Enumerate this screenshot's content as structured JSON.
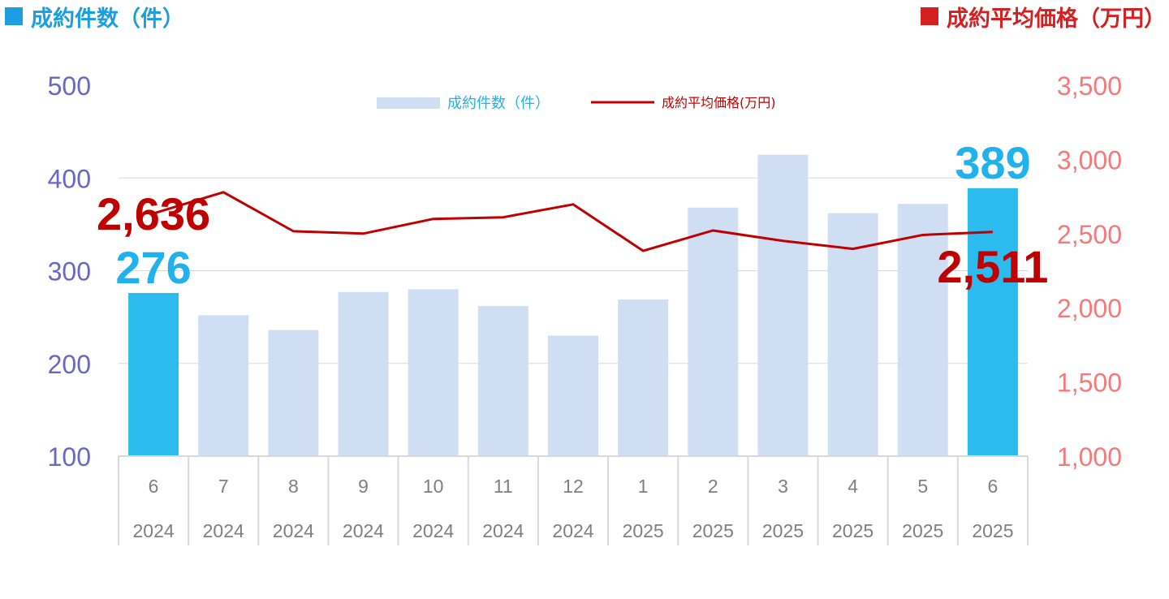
{
  "colors": {
    "count_accent": "#1b9ee0",
    "price_accent": "#d42020",
    "bar_light": "#cfdef3",
    "bar_highlight": "#2bbbee",
    "line": "#c00000",
    "left_axis_text": "#6a66c4",
    "right_axis_text": "#f47a7a",
    "count_label": "#1fb2ec",
    "price_label": "#c00000",
    "grid": "#d9d9d9",
    "cat_text": "#7f7f7f"
  },
  "header": {
    "left_title": "成約件数（件）",
    "right_title": "成約平均価格（万円）"
  },
  "chart_data": {
    "type": "bar",
    "categories": [
      {
        "month": "6",
        "year": "2024"
      },
      {
        "month": "7",
        "year": "2024"
      },
      {
        "month": "8",
        "year": "2024"
      },
      {
        "month": "9",
        "year": "2024"
      },
      {
        "month": "10",
        "year": "2024"
      },
      {
        "month": "11",
        "year": "2024"
      },
      {
        "month": "12",
        "year": "2024"
      },
      {
        "month": "1",
        "year": "2025"
      },
      {
        "month": "2",
        "year": "2025"
      },
      {
        "month": "3",
        "year": "2025"
      },
      {
        "month": "4",
        "year": "2025"
      },
      {
        "month": "5",
        "year": "2025"
      },
      {
        "month": "6",
        "year": "2025"
      }
    ],
    "series": [
      {
        "name": "成約件数（件）",
        "type": "bar",
        "axis": "left",
        "values": [
          276,
          252,
          236,
          277,
          280,
          262,
          230,
          269,
          368,
          425,
          362,
          372,
          389
        ],
        "highlight": [
          0,
          12
        ]
      },
      {
        "name": "成約平均価格(万円)",
        "type": "line",
        "axis": "right",
        "values": [
          2636,
          2779,
          2516,
          2500,
          2599,
          2610,
          2697,
          2384,
          2521,
          2451,
          2397,
          2491,
          2511
        ]
      }
    ],
    "y_left": {
      "range": [
        100,
        500
      ],
      "ticks": [
        "500",
        "400",
        "300",
        "200",
        "100"
      ]
    },
    "y_right": {
      "range": [
        1000,
        3500
      ],
      "ticks": [
        "3,500",
        "3,000",
        "2,500",
        "2,000",
        "1,500",
        "1,000"
      ]
    },
    "data_labels": [
      {
        "series": 0,
        "index": 0,
        "text": "276"
      },
      {
        "series": 1,
        "index": 0,
        "text": "2,636"
      },
      {
        "series": 0,
        "index": 12,
        "text": "389"
      },
      {
        "series": 1,
        "index": 12,
        "text": "2,511"
      }
    ],
    "legend_position": "top-center",
    "grid": true
  }
}
